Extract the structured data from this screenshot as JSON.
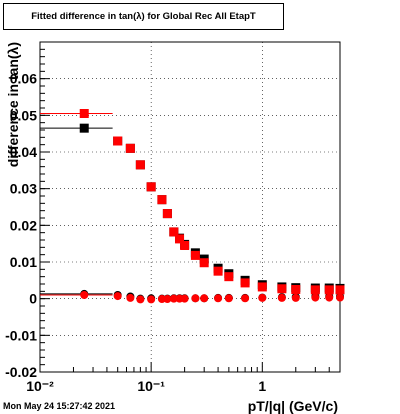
{
  "chart_data": {
    "type": "scatter",
    "title": "Fitted difference in tan(λ) for Global Rec All EtapT",
    "xlabel": "pT/|q| (GeV/c)",
    "ylabel": "difference in tan(λ)",
    "x_scale": "log",
    "xlim": [
      0.01,
      5.0
    ],
    "ylim": [
      -0.02,
      0.07
    ],
    "x_tick_labels": [
      "10⁻²",
      "10⁻¹",
      "1"
    ],
    "y_ticks": [
      -0.02,
      -0.01,
      0,
      0.01,
      0.02,
      0.03,
      0.04,
      0.05,
      0.06
    ],
    "y_tick_labels": [
      "-0.02",
      "-0.01",
      "0",
      "0.01",
      "0.02",
      "0.03",
      "0.04",
      "0.05",
      "0.06"
    ],
    "grid": true,
    "series": [
      {
        "color": "#000000",
        "marker": "square",
        "x": [
          0.025,
          0.05,
          0.065,
          0.08,
          0.1,
          0.125,
          0.14,
          0.16,
          0.18,
          0.2,
          0.25,
          0.3,
          0.4,
          0.5,
          0.7,
          1.0,
          1.5,
          2.0,
          3.0,
          4.0,
          5.0
        ],
        "y": [
          0.0465,
          0.043,
          0.041,
          0.0365,
          0.0305,
          0.027,
          0.0232,
          0.0182,
          0.0165,
          0.0148,
          0.0125,
          0.0108,
          0.0083,
          0.0068,
          0.005,
          0.0038,
          0.0032,
          0.003,
          0.0029,
          0.0029,
          0.0028
        ]
      },
      {
        "color": "#ff0000",
        "marker": "square",
        "x": [
          0.025,
          0.05,
          0.065,
          0.08,
          0.1,
          0.125,
          0.14,
          0.16,
          0.18,
          0.2,
          0.25,
          0.3,
          0.4,
          0.5,
          0.7,
          1.0,
          1.5,
          2.0,
          3.0,
          4.0,
          5.0
        ],
        "y": [
          0.0505,
          0.043,
          0.041,
          0.0365,
          0.0305,
          0.027,
          0.0232,
          0.0182,
          0.0163,
          0.0145,
          0.0118,
          0.0098,
          0.0075,
          0.006,
          0.0043,
          0.0032,
          0.0027,
          0.0025,
          0.0024,
          0.0024,
          0.0024
        ]
      },
      {
        "color": "#000000",
        "marker": "circle",
        "x": [
          0.025,
          0.05,
          0.065,
          0.08,
          0.1,
          0.125,
          0.14,
          0.16,
          0.18,
          0.2,
          0.25,
          0.3,
          0.4,
          0.5,
          0.7,
          1.0,
          1.5,
          2.0,
          3.0,
          4.0,
          5.0
        ],
        "y": [
          0.0013,
          0.001,
          0.0006,
          0.0,
          0.0001,
          0.0,
          0.0,
          0.0001,
          0.0001,
          0.0001,
          0.0001,
          0.0001,
          0.0002,
          0.0002,
          0.0002,
          0.0003,
          0.0004,
          0.0005,
          0.0006,
          0.0006,
          0.0006
        ]
      },
      {
        "color": "#ff0000",
        "marker": "circle",
        "x": [
          0.025,
          0.05,
          0.065,
          0.08,
          0.1,
          0.125,
          0.14,
          0.16,
          0.18,
          0.2,
          0.25,
          0.3,
          0.4,
          0.5,
          0.7,
          1.0,
          1.5,
          2.0,
          3.0,
          4.0,
          5.0
        ],
        "y": [
          0.001,
          0.0007,
          0.0002,
          -0.0002,
          -0.0002,
          -0.0001,
          -0.0001,
          0.0,
          0.0,
          0.0,
          0.0001,
          0.0001,
          0.0001,
          0.0001,
          0.0001,
          0.0002,
          0.0002,
          0.0002,
          0.0003,
          0.0003,
          0.0003
        ]
      }
    ]
  },
  "footer": {
    "timestamp": "Mon May 24 15:27:42 2021"
  }
}
